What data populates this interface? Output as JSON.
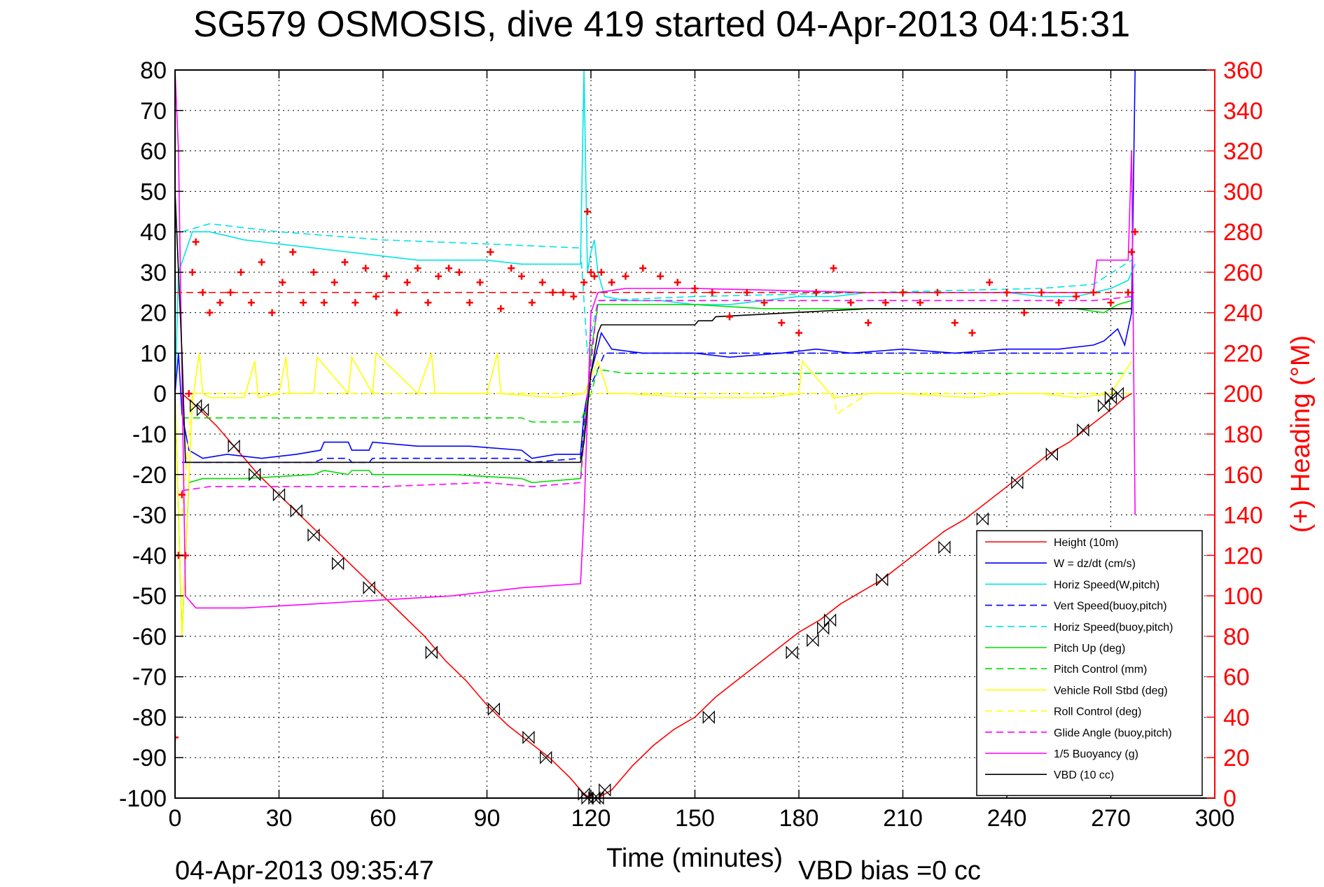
{
  "chart_data": {
    "type": "line",
    "title": "SG579 OSMOSIS, dive 419 started 04-Apr-2013 04:15:31",
    "xlabel": "Time (minutes)",
    "ylabel": "",
    "y2label": "(+) Heading (°M)",
    "footer_left": "04-Apr-2013 09:35:47",
    "footer_right": "VBD bias =0 cc",
    "xlim": [
      0,
      300
    ],
    "ylim": [
      -100,
      80
    ],
    "y2lim": [
      0,
      360
    ],
    "xticks": [
      0,
      30,
      60,
      90,
      120,
      150,
      180,
      210,
      240,
      270,
      300
    ],
    "yticks": [
      -100,
      -90,
      -80,
      -70,
      -60,
      -50,
      -40,
      -30,
      -20,
      -10,
      0,
      10,
      20,
      30,
      40,
      50,
      60,
      70,
      80
    ],
    "y2ticks": [
      0,
      20,
      40,
      60,
      80,
      100,
      120,
      140,
      160,
      180,
      200,
      220,
      240,
      260,
      280,
      300,
      320,
      340,
      360
    ],
    "grid": true,
    "legend_position": "bottom-right",
    "colors": {
      "axis": "#000000",
      "right_axis": "#ff0000",
      "grid": "#000000"
    },
    "series": [
      {
        "name": "Height (10m)",
        "color": "#ff0000",
        "style": "solid",
        "x": [
          0,
          2,
          6,
          12,
          18,
          24,
          30,
          36,
          42,
          48,
          54,
          60,
          66,
          72,
          78,
          84,
          90,
          96,
          102,
          108,
          114,
          118,
          120,
          122,
          126,
          132,
          138,
          144,
          150,
          156,
          162,
          168,
          174,
          180,
          186,
          192,
          198,
          204,
          210,
          216,
          222,
          228,
          234,
          240,
          246,
          252,
          258,
          264,
          270,
          274,
          276
        ],
        "y": [
          0,
          0,
          -3,
          -8,
          -14,
          -20,
          -25,
          -30,
          -35,
          -40,
          -45,
          -50,
          -55,
          -60,
          -66,
          -71,
          -77,
          -82,
          -86,
          -90,
          -95,
          -99,
          -100,
          -100,
          -98,
          -92,
          -87,
          -83,
          -80,
          -75,
          -71,
          -67,
          -63,
          -59,
          -56,
          -52,
          -49,
          -46,
          -42,
          -38,
          -34,
          -31,
          -27,
          -23,
          -19,
          -15,
          -12,
          -8,
          -4,
          -1,
          0
        ]
      },
      {
        "name": "W = dz/dt (cm/s)",
        "color": "#0000ff",
        "style": "solid",
        "x": [
          0,
          1,
          2,
          4,
          8,
          15,
          25,
          35,
          42,
          43,
          50,
          51,
          56,
          57,
          70,
          85,
          100,
          103,
          110,
          117,
          118,
          120,
          123,
          126,
          135,
          150,
          160,
          175,
          185,
          195,
          210,
          225,
          240,
          255,
          265,
          268,
          272,
          274,
          276,
          277
        ],
        "y": [
          0,
          10,
          -5,
          -14,
          -16,
          -15,
          -16,
          -15,
          -14,
          -12,
          -12,
          -14,
          -14,
          -12,
          -13,
          -13,
          -14,
          -16,
          -15,
          -15,
          -5,
          5,
          15,
          11,
          10,
          10,
          9,
          10,
          11,
          10,
          11,
          10,
          11,
          11,
          12,
          13,
          16,
          12,
          20,
          80
        ]
      },
      {
        "name": "Horiz Speed(W,pitch)",
        "color": "#00e5e5",
        "style": "solid",
        "x": [
          0,
          1,
          3,
          5,
          10,
          20,
          30,
          40,
          50,
          60,
          70,
          80,
          90,
          100,
          110,
          117,
          118,
          119,
          120,
          121,
          122,
          124,
          130,
          140,
          150,
          160,
          170,
          180,
          190,
          200,
          210,
          220,
          230,
          240,
          250,
          260,
          265,
          270,
          275,
          277
        ],
        "y": [
          0,
          30,
          35,
          40,
          40,
          38,
          37,
          36,
          35,
          34,
          33,
          33,
          33,
          32,
          32,
          32,
          80,
          30,
          35,
          38,
          30,
          24,
          23,
          23,
          22,
          22,
          23,
          24,
          24,
          25,
          25,
          25,
          25,
          25,
          24,
          24,
          25,
          26,
          28,
          32
        ]
      },
      {
        "name": "Vert Speed(buoy,pitch)",
        "color": "#0000ff",
        "style": "dashed",
        "x": [
          2,
          10,
          40,
          43,
          50,
          51,
          56,
          57,
          100,
          103,
          117,
          119,
          124,
          150,
          200,
          250,
          276
        ],
        "y": [
          -17,
          -17,
          -17,
          -16,
          -16,
          -17,
          -17,
          -16,
          -16,
          -17,
          -16,
          0,
          10,
          10,
          10,
          10,
          10
        ]
      },
      {
        "name": "Horiz Speed(buoy,pitch)",
        "color": "#00e5e5",
        "style": "dashed",
        "x": [
          2,
          10,
          30,
          60,
          90,
          117,
          119,
          122,
          150,
          200,
          250,
          265,
          276
        ],
        "y": [
          40,
          42,
          40,
          38,
          37,
          36,
          10,
          23,
          24,
          25,
          26,
          27,
          33
        ]
      },
      {
        "name": "Pitch Up (deg)",
        "color": "#00dd00",
        "style": "solid",
        "x": [
          0,
          2,
          4,
          8,
          20,
          40,
          43,
          50,
          51,
          56,
          57,
          80,
          100,
          103,
          117,
          118,
          120,
          122,
          130,
          150,
          170,
          200,
          230,
          260,
          268,
          272,
          276
        ],
        "y": [
          0,
          -60,
          -22,
          -21,
          -21,
          -20,
          -19,
          -20,
          -19,
          -19,
          -20,
          -20,
          -21,
          -22,
          -21,
          -10,
          10,
          22,
          22,
          22,
          21,
          21,
          21,
          21,
          20,
          22,
          23
        ]
      },
      {
        "name": "Pitch Control (mm)",
        "color": "#00dd00",
        "style": "dashed",
        "x": [
          2,
          10,
          60,
          100,
          103,
          117,
          120,
          122,
          130,
          150,
          200,
          250,
          276
        ],
        "y": [
          -6,
          -6,
          -6,
          -6,
          -7,
          -7,
          0,
          6,
          5,
          5,
          5,
          5,
          5
        ]
      },
      {
        "name": "Vehicle Roll Stbd (deg)",
        "color": "#ffff00",
        "style": "solid",
        "x": [
          0,
          2,
          5,
          7,
          8,
          10,
          20,
          23,
          24,
          30,
          32,
          33,
          40,
          41,
          50,
          51,
          57,
          58,
          70,
          74,
          75,
          90,
          93,
          94,
          110,
          118,
          122,
          125,
          130,
          150,
          170,
          180,
          181,
          190,
          200,
          210,
          230,
          240,
          250,
          260,
          270,
          276
        ],
        "y": [
          0,
          -60,
          -2,
          10,
          0,
          -1,
          -1,
          8,
          -1,
          0,
          9,
          0,
          0,
          9,
          0,
          9,
          0,
          10,
          0,
          10,
          0,
          0,
          10,
          0,
          -1,
          0,
          8,
          0,
          0,
          -1,
          -1,
          0,
          8,
          -1,
          0,
          0,
          -1,
          0,
          0,
          -1,
          0,
          8
        ]
      },
      {
        "name": "Roll Control (deg)",
        "color": "#ffff00",
        "style": "dashed",
        "x": [
          2,
          5,
          60,
          120,
          180,
          190,
          191,
          200,
          276
        ],
        "y": [
          -30,
          0,
          0,
          0,
          0,
          0,
          -5,
          0,
          0
        ]
      },
      {
        "name": "Glide Angle (buoy,pitch)",
        "color": "#ff00ff",
        "style": "dashed",
        "x": [
          2,
          10,
          30,
          60,
          90,
          103,
          117,
          119,
          122,
          150,
          200,
          250,
          265,
          276
        ],
        "y": [
          -24,
          -23,
          -23,
          -23,
          -22,
          -23,
          -22,
          0,
          23,
          23,
          23,
          23,
          23,
          24
        ]
      },
      {
        "name": "1/5 Buoyancy (g)",
        "color": "#ff00ff",
        "style": "solid",
        "x": [
          0,
          1,
          3,
          6,
          20,
          40,
          60,
          80,
          100,
          117,
          118,
          120,
          122,
          130,
          150,
          200,
          250,
          265,
          266,
          275,
          276,
          277
        ],
        "y": [
          80,
          60,
          -50,
          -53,
          -53,
          -52,
          -51,
          -50,
          -48,
          -47,
          -30,
          20,
          25,
          26,
          26,
          25,
          25,
          25,
          33,
          33,
          60,
          -30
        ]
      },
      {
        "name": "VBD (10 cc)",
        "color": "#000000",
        "style": "solid",
        "x": [
          0,
          2,
          3,
          30,
          60,
          90,
          117,
          118,
          120,
          122,
          123,
          150,
          151,
          155,
          156,
          200,
          276
        ],
        "y": [
          50,
          10,
          -17,
          -17,
          -17,
          -17,
          -17,
          -12,
          5,
          15,
          17,
          17,
          18,
          18,
          19,
          21,
          21
        ]
      }
    ],
    "heading": {
      "name": "(+) Heading",
      "axis": "right",
      "color": "#ff0000",
      "mean": 250,
      "x": [
        0,
        1,
        2,
        3,
        4,
        5,
        6,
        8,
        10,
        13,
        16,
        19,
        22,
        25,
        28,
        31,
        34,
        37,
        40,
        43,
        46,
        49,
        52,
        55,
        58,
        61,
        64,
        67,
        70,
        73,
        76,
        79,
        82,
        85,
        88,
        91,
        94,
        97,
        100,
        103,
        106,
        109,
        112,
        115,
        118,
        119,
        120,
        121,
        123,
        126,
        130,
        135,
        140,
        145,
        150,
        155,
        160,
        165,
        170,
        175,
        180,
        185,
        190,
        195,
        200,
        205,
        210,
        215,
        220,
        225,
        230,
        235,
        240,
        245,
        250,
        255,
        260,
        265,
        270,
        275,
        276,
        277
      ],
      "y": [
        30,
        120,
        150,
        120,
        200,
        260,
        275,
        250,
        240,
        245,
        250,
        260,
        245,
        265,
        240,
        255,
        270,
        245,
        260,
        245,
        255,
        265,
        245,
        262,
        248,
        258,
        240,
        255,
        262,
        245,
        258,
        262,
        260,
        245,
        255,
        270,
        242,
        262,
        258,
        245,
        255,
        250,
        250,
        248,
        255,
        290,
        260,
        258,
        260,
        255,
        258,
        262,
        258,
        255,
        252,
        250,
        238,
        250,
        245,
        235,
        230,
        250,
        262,
        245,
        235,
        245,
        250,
        245,
        250,
        235,
        230,
        255,
        250,
        240,
        250,
        245,
        248,
        250,
        245,
        250,
        270,
        280
      ]
    },
    "markers": {
      "name": "hourglass markers",
      "color": "#000000",
      "x": [
        6,
        8,
        17,
        23,
        30,
        35,
        40,
        47,
        56,
        74,
        92,
        102,
        107,
        118,
        119,
        121,
        122,
        124,
        154,
        178,
        184,
        187,
        189,
        204,
        222,
        233,
        243,
        253,
        262,
        268,
        270,
        272
      ],
      "y": [
        -3,
        -4,
        -13,
        -20,
        -25,
        -29,
        -35,
        -42,
        -48,
        -64,
        -78,
        -85,
        -90,
        -99,
        -100,
        -100,
        -100,
        -98,
        -80,
        -64,
        -61,
        -58,
        -56,
        -46,
        -38,
        -31,
        -22,
        -15,
        -9,
        -3,
        -1,
        0
      ]
    }
  }
}
